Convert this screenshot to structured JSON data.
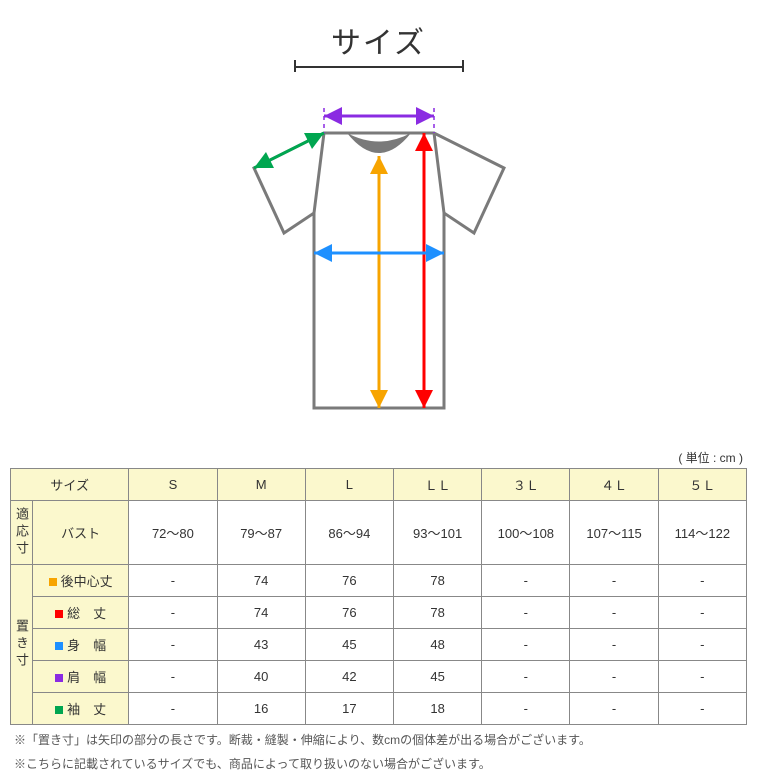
{
  "title": "サイズ",
  "unit_note": "( 単位 : cm )",
  "diagram": {
    "tshirt_stroke": "#7a7a7a",
    "neck_fill": "#7a7a7a",
    "arrows": {
      "shoulder_width": {
        "color": "#8a2be2",
        "label": "肩幅"
      },
      "sleeve_length": {
        "color": "#00a650",
        "label": "袖丈"
      },
      "body_length_back": {
        "color": "#f7a400",
        "label": "後中心丈"
      },
      "total_length": {
        "color": "#ff0000",
        "label": "総丈"
      },
      "body_width": {
        "color": "#1e90ff",
        "label": "身幅"
      }
    }
  },
  "table": {
    "header_bg": "#fbf8cd",
    "border_color": "#888888",
    "size_label": "サイズ",
    "sizes": [
      "S",
      "M",
      "L",
      "ＬＬ",
      "３Ｌ",
      "４Ｌ",
      "５Ｌ"
    ],
    "fit_group_label": "適応寸",
    "fit_rows": [
      {
        "label": "バスト",
        "marker": null,
        "values": [
          "72～80",
          "79～87",
          "86～94",
          "93～101",
          "100～108",
          "107～115",
          "114～122"
        ]
      }
    ],
    "lay_group_label": "置き寸",
    "lay_rows": [
      {
        "label": "後中心丈",
        "marker": "#f7a400",
        "values": [
          "-",
          "74",
          "76",
          "78",
          "-",
          "-",
          "-"
        ]
      },
      {
        "label": "総　丈",
        "marker": "#ff0000",
        "values": [
          "-",
          "74",
          "76",
          "78",
          "-",
          "-",
          "-"
        ]
      },
      {
        "label": "身　幅",
        "marker": "#1e90ff",
        "values": [
          "-",
          "43",
          "45",
          "48",
          "-",
          "-",
          "-"
        ]
      },
      {
        "label": "肩　幅",
        "marker": "#8a2be2",
        "values": [
          "-",
          "40",
          "42",
          "45",
          "-",
          "-",
          "-"
        ]
      },
      {
        "label": "袖　丈",
        "marker": "#00a650",
        "values": [
          "-",
          "16",
          "17",
          "18",
          "-",
          "-",
          "-"
        ]
      }
    ]
  },
  "footnotes": [
    "※「置き寸」は矢印の部分の長さです。断裁・縫製・伸縮により、数cmの個体差が出る場合がございます。",
    "※こちらに記載されているサイズでも、商品によって取り扱いのない場合がございます。"
  ]
}
